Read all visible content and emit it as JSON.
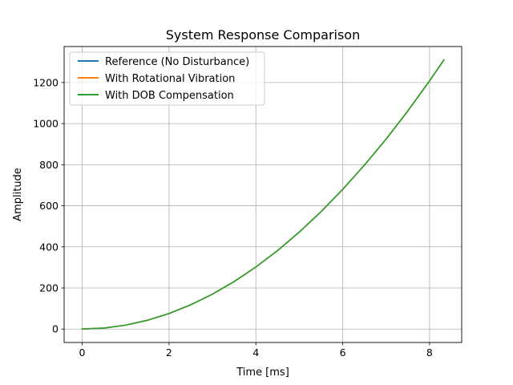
{
  "chart_data": {
    "type": "line",
    "title": "System Response Comparison",
    "xlabel": "Time [ms]",
    "ylabel": "Amplitude",
    "xlim": [
      -0.416,
      8.74
    ],
    "ylim": [
      -65.5,
      1375.3
    ],
    "xticks": [
      0,
      2,
      4,
      6,
      8
    ],
    "yticks": [
      0,
      200,
      400,
      600,
      800,
      1000,
      1200
    ],
    "grid": true,
    "legend_position": "upper-left",
    "series": [
      {
        "name": "Reference (No Disturbance)",
        "color": "#1f77b4",
        "x": [
          0,
          0.5,
          1,
          1.5,
          2,
          2.5,
          3,
          3.5,
          4,
          4.5,
          5,
          5.5,
          6,
          6.5,
          7,
          7.5,
          8,
          8.33
        ],
        "y": [
          0,
          4.7,
          18.9,
          42.5,
          75.5,
          118,
          170,
          231,
          302,
          382,
          472,
          571,
          680,
          798,
          925,
          1062,
          1208,
          1310
        ]
      },
      {
        "name": "With Rotational Vibration",
        "color": "#ff7f0e",
        "x": [
          0,
          0.5,
          1,
          1.5,
          2,
          2.5,
          3,
          3.5,
          4,
          4.5,
          5,
          5.5,
          6,
          6.5,
          7,
          7.5,
          8,
          8.33
        ],
        "y": [
          0,
          4.7,
          18.9,
          42.5,
          75.5,
          118,
          170,
          231,
          302,
          382,
          472,
          571,
          680,
          798,
          925,
          1062,
          1208,
          1310
        ]
      },
      {
        "name": "With DOB Compensation",
        "color": "#2ca02c",
        "x": [
          0,
          0.5,
          1,
          1.5,
          2,
          2.5,
          3,
          3.5,
          4,
          4.5,
          5,
          5.5,
          6,
          6.5,
          7,
          7.5,
          8,
          8.33
        ],
        "y": [
          0,
          4.7,
          18.9,
          42.5,
          75.5,
          118,
          170,
          231,
          302,
          382,
          472,
          571,
          680,
          798,
          925,
          1062,
          1208,
          1310
        ]
      }
    ]
  }
}
